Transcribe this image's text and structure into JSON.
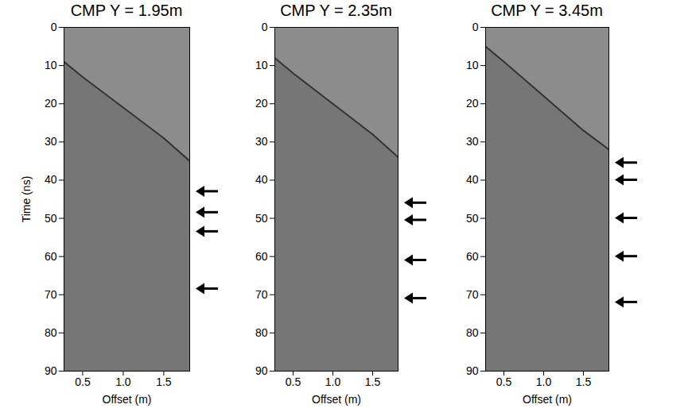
{
  "chart_data": [
    {
      "type": "line",
      "title": "CMP Y = 1.95m",
      "xlabel": "Offset (m)",
      "ylabel": "Time (ns)",
      "xlim": [
        0.27,
        1.82
      ],
      "ylim": [
        0,
        90
      ],
      "xticks": [
        0.5,
        1,
        1.5
      ],
      "yticks": [
        0,
        10,
        20,
        30,
        40,
        50,
        60,
        70,
        80,
        90
      ],
      "x": [
        0.27,
        0.5,
        1.0,
        1.5,
        1.82
      ],
      "values": [
        9,
        13,
        21,
        29,
        35
      ],
      "color": "#333333",
      "arrows": [
        43,
        48.5,
        53.5,
        68.5
      ]
    },
    {
      "type": "line",
      "title": "CMP Y = 2.35m",
      "xlabel": "Offset (m)",
      "xlim": [
        0.27,
        1.82
      ],
      "ylim": [
        0,
        90
      ],
      "xticks": [
        0.5,
        1,
        1.5
      ],
      "yticks": [
        0,
        10,
        20,
        30,
        40,
        50,
        60,
        70,
        80,
        90
      ],
      "x": [
        0.27,
        0.5,
        1.0,
        1.5,
        1.82
      ],
      "values": [
        8,
        12,
        20,
        28,
        34
      ],
      "color": "#333333",
      "arrows": [
        46,
        50.5,
        61,
        71
      ]
    },
    {
      "type": "line",
      "title": "CMP Y = 3.45m",
      "xlabel": "Offset (m)",
      "xlim": [
        0.27,
        1.82
      ],
      "ylim": [
        0,
        90
      ],
      "xticks": [
        0.5,
        1,
        1.5
      ],
      "yticks": [
        0,
        10,
        20,
        30,
        40,
        50,
        60,
        70,
        80,
        90
      ],
      "x": [
        0.27,
        0.5,
        1.0,
        1.5,
        1.82
      ],
      "values": [
        5,
        9,
        18,
        27,
        32
      ],
      "color": "#333333",
      "arrows": [
        35.5,
        40,
        50,
        60,
        72
      ]
    }
  ]
}
